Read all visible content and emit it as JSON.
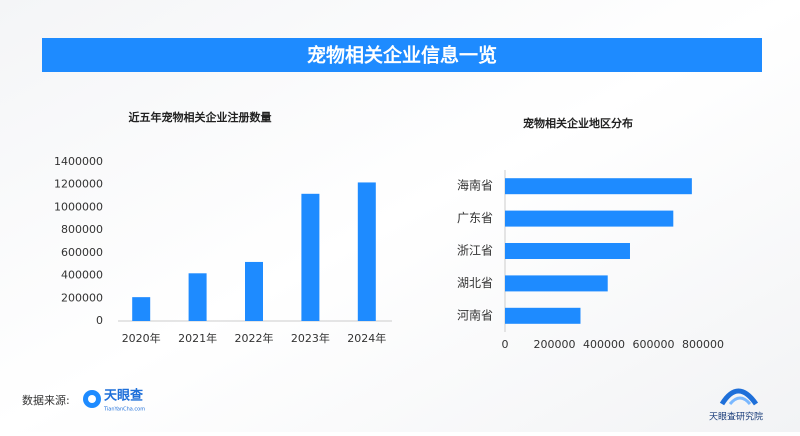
{
  "header": {
    "title": "宠物相关企业信息一览"
  },
  "chart_data": [
    {
      "type": "bar",
      "title": "近五年宠物相关企业注册数量",
      "categories": [
        "2020年",
        "2021年",
        "2022年",
        "2023年",
        "2024年"
      ],
      "values": [
        210000,
        420000,
        520000,
        1120000,
        1220000
      ],
      "color": "#1e8bff",
      "ylim": [
        0,
        1400000
      ],
      "yticks": [
        0,
        200000,
        400000,
        600000,
        800000,
        1000000,
        1200000,
        1400000
      ],
      "grid": false
    },
    {
      "type": "barh",
      "title": "宠物相关企业地区分布",
      "categories": [
        "海南省",
        "广东省",
        "浙江省",
        "湖北省",
        "河南省"
      ],
      "values": [
        755000,
        680000,
        505000,
        415000,
        305000
      ],
      "color": "#1e8bff",
      "xlim": [
        0,
        800000
      ],
      "xticks": [
        0,
        200000,
        400000,
        600000,
        800000
      ],
      "grid": false
    }
  ],
  "footer": {
    "source_label": "数据来源:",
    "logo_text": "天眼查",
    "logo_sub": "TianYanCha.com",
    "right_logo": "天眼查研究院"
  }
}
